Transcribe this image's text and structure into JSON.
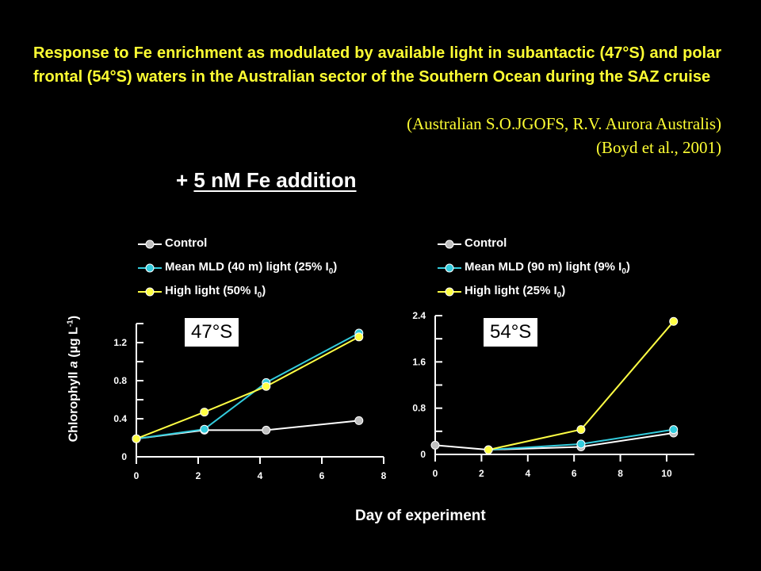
{
  "slide": {
    "title": "Response to Fe enrichment as modulated by available light in subantactic (47°S) and polar frontal (54°S) waters in the Australian sector of the Southern Ocean during the SAZ cruise",
    "reference_1": "(Australian S.O.JGOFS, R.V. Aurora Australis)",
    "reference_2": "(Boyd et al., 2001)",
    "headline_prefix": "+ ",
    "headline_underlined": "5 nM Fe addition",
    "y_axis_label_pre": "Chlorophyll ",
    "y_axis_label_italic": "a",
    "y_axis_label_mid": " (µg L",
    "y_axis_label_sup": "-1",
    "y_axis_label_post": ")",
    "x_axis_label": "Day of experiment"
  },
  "legend_left": [
    {
      "text": "Control",
      "sub": "",
      "tail": ""
    },
    {
      "text": "Mean MLD (40 m) light (25% I",
      "sub": "0",
      "tail": ")"
    },
    {
      "text": "High light (50% I",
      "sub": "0",
      "tail": ")"
    }
  ],
  "legend_right": [
    {
      "text": "Control",
      "sub": "",
      "tail": ""
    },
    {
      "text": "Mean MLD (90 m) light (9% I",
      "sub": "0",
      "tail": ")"
    },
    {
      "text": "High light (25% I",
      "sub": "0",
      "tail": ")"
    }
  ],
  "colors": {
    "background": "#000000",
    "title": "#ffff33",
    "control": "#ffffff",
    "control_marker": "#c0c0c0",
    "mean_mld": "#33ccdd",
    "high_light": "#ffff44"
  },
  "chart_data": [
    {
      "type": "line",
      "region_label": "47°S",
      "xlim": [
        0,
        8
      ],
      "ylim": [
        0,
        1.4
      ],
      "x_ticks": [
        "0",
        "2",
        "4",
        "6",
        "8"
      ],
      "x_tick_values": [
        0,
        2,
        4,
        6,
        8
      ],
      "y_ticks": [
        "0",
        "0.4",
        "0.8",
        "1.2"
      ],
      "y_tick_values": [
        0,
        0.4,
        0.8,
        1.2
      ],
      "y_minor_ticks": [
        0.2,
        0.6,
        1.0,
        1.4
      ],
      "series": [
        {
          "name": "Control",
          "color": "#ffffff",
          "marker": "#c0c0c0",
          "x": [
            0,
            2.2,
            4.2,
            7.2
          ],
          "y": [
            0.19,
            0.28,
            0.28,
            0.38
          ]
        },
        {
          "name": "Mean MLD (40 m) light (25% I0)",
          "color": "#33ccdd",
          "marker": "#33ccdd",
          "x": [
            0,
            2.2,
            4.2,
            7.2
          ],
          "y": [
            0.19,
            0.29,
            0.78,
            1.3
          ]
        },
        {
          "name": "High light (50% I0)",
          "color": "#ffff44",
          "marker": "#ffff44",
          "x": [
            0,
            2.2,
            4.2,
            7.2
          ],
          "y": [
            0.19,
            0.47,
            0.74,
            1.26
          ]
        }
      ]
    },
    {
      "type": "line",
      "region_label": "54°S",
      "xlim": [
        0,
        11.2
      ],
      "ylim": [
        0,
        2.4
      ],
      "x_ticks": [
        "0",
        "2",
        "4",
        "6",
        "8",
        "10"
      ],
      "x_tick_values": [
        0,
        2,
        4,
        6,
        8,
        10
      ],
      "y_ticks": [
        "0",
        "0.8",
        "1.6",
        "2.4"
      ],
      "y_tick_values": [
        0,
        0.8,
        1.6,
        2.4
      ],
      "y_minor_ticks": [
        0.4,
        1.2,
        2.0
      ],
      "series": [
        {
          "name": "Control",
          "color": "#ffffff",
          "marker": "#c0c0c0",
          "x": [
            0,
            2.3,
            6.3,
            10.3
          ],
          "y": [
            0.16,
            0.08,
            0.13,
            0.37
          ]
        },
        {
          "name": "Mean MLD (90 m) light (9% I0)",
          "color": "#33ccdd",
          "marker": "#33ccdd",
          "x": [
            2.3,
            6.3,
            10.3
          ],
          "y": [
            0.08,
            0.18,
            0.43
          ]
        },
        {
          "name": "High light (25% I0)",
          "color": "#ffff44",
          "marker": "#ffff44",
          "x": [
            2.3,
            6.3,
            10.3
          ],
          "y": [
            0.08,
            0.43,
            2.3
          ]
        }
      ]
    }
  ]
}
